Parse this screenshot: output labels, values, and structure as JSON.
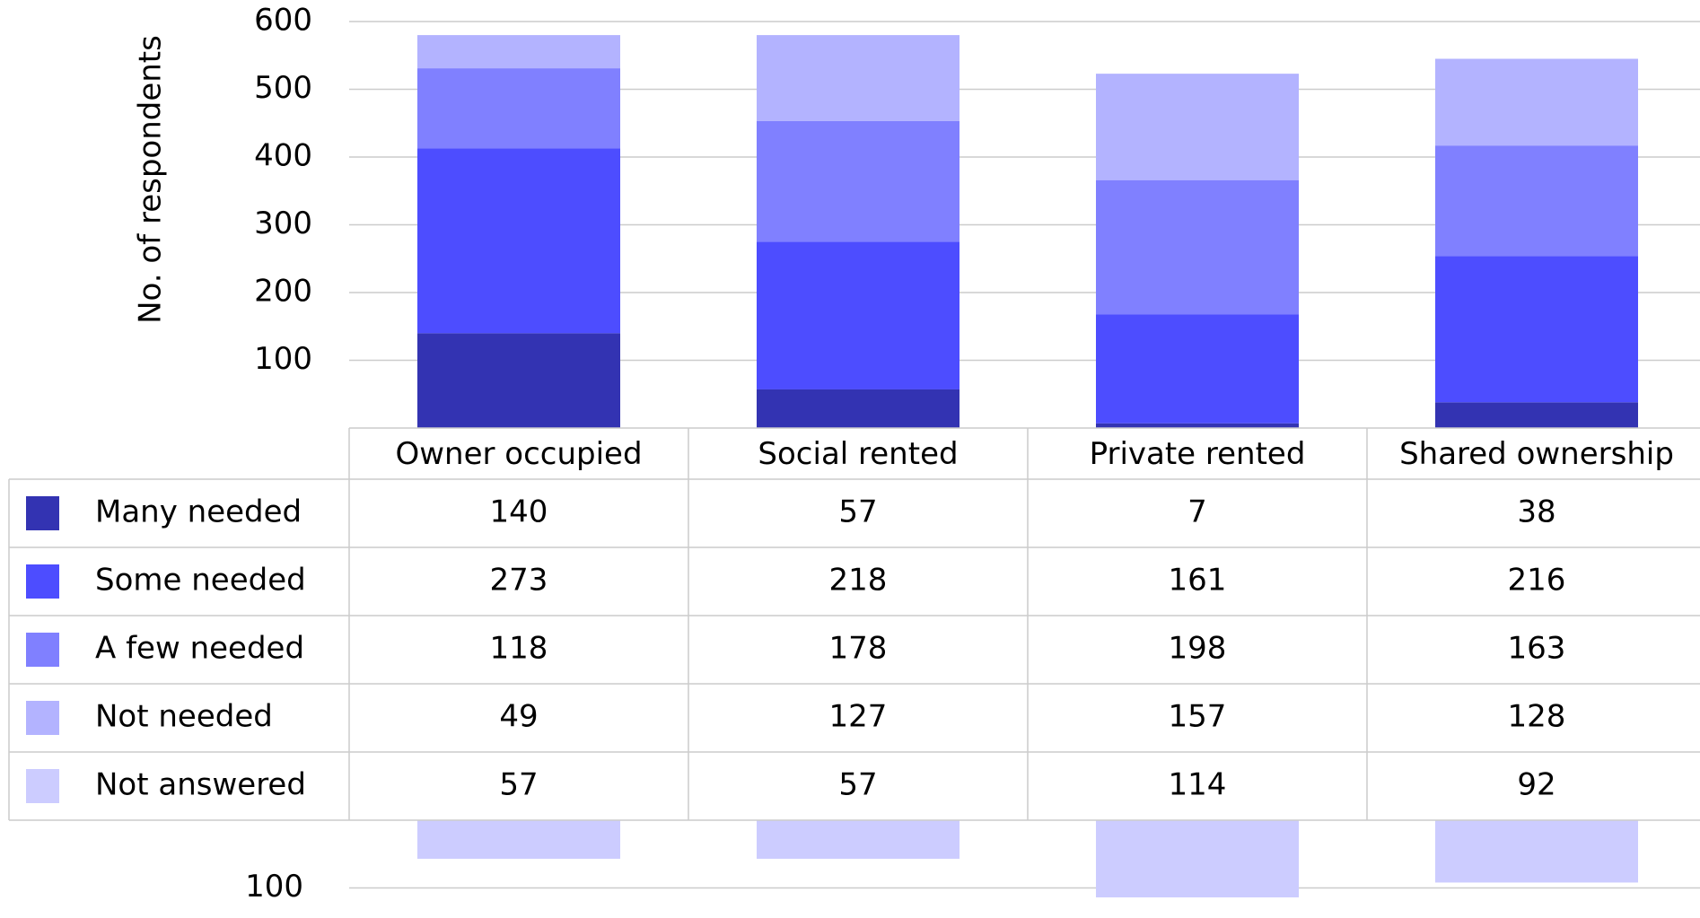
{
  "chart_data": {
    "type": "bar",
    "stacked": true,
    "y_label": "No. of respondents",
    "categories": [
      "Owner occupied",
      "Social rented",
      "Private rented",
      "Shared ownership"
    ],
    "series": [
      {
        "name": "Many needed",
        "color": "#3333b2",
        "values": [
          140,
          57,
          7,
          38
        ]
      },
      {
        "name": "Some needed",
        "color": "#4d4dff",
        "values": [
          273,
          218,
          161,
          216
        ]
      },
      {
        "name": "A few needed",
        "color": "#8080ff",
        "values": [
          118,
          178,
          198,
          163
        ]
      },
      {
        "name": "Not needed",
        "color": "#b3b3ff",
        "values": [
          49,
          127,
          157,
          128
        ]
      },
      {
        "name": "Not answered",
        "color": "#ccccff",
        "values": [
          57,
          57,
          114,
          92
        ],
        "axis": "y2"
      }
    ],
    "ylim": [
      0,
      600
    ],
    "yticks": [
      100,
      200,
      300,
      400,
      500,
      600
    ],
    "y2lim": [
      0,
      125
    ],
    "y2ticks": [
      100
    ],
    "grid": true
  }
}
